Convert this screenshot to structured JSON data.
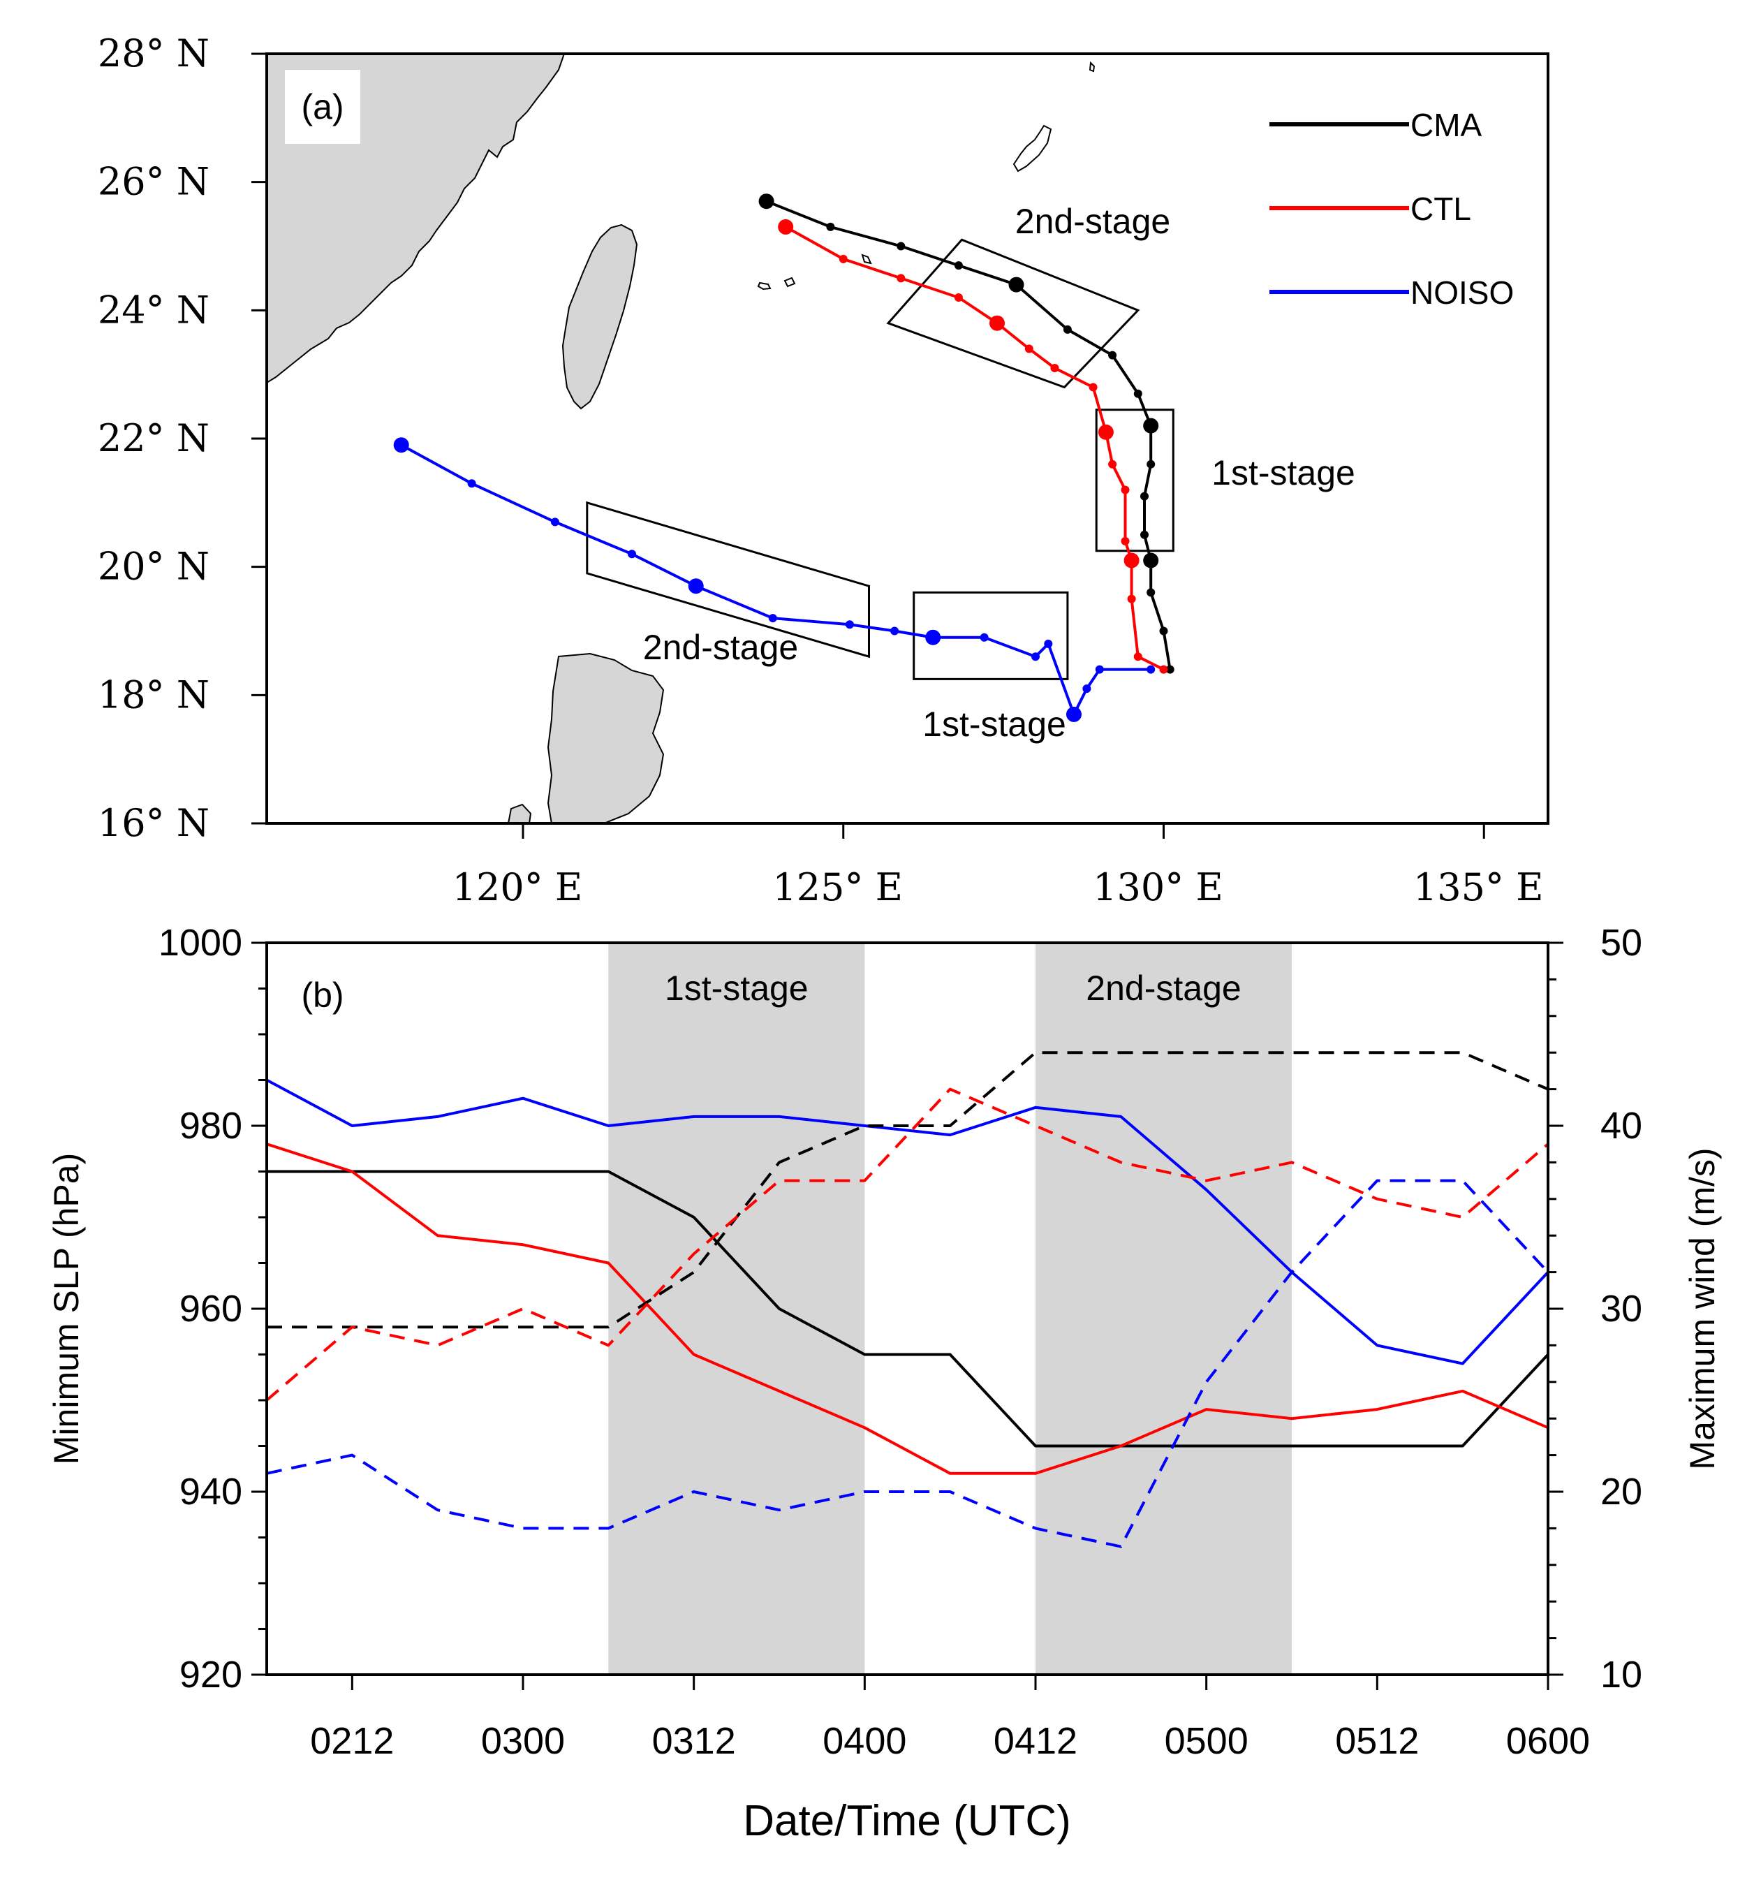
{
  "chart_data": [
    {
      "type": "scatter",
      "panel_label": "(a)",
      "xlim": [
        116,
        136
      ],
      "ylim": [
        16,
        28
      ],
      "x_ticks": [
        120,
        125,
        130,
        135
      ],
      "x_tick_labels": [
        "120° E",
        "125° E",
        "130° E",
        "135° E"
      ],
      "y_ticks": [
        16,
        18,
        20,
        22,
        24,
        26,
        28
      ],
      "y_tick_labels": [
        "16° N",
        "18° N",
        "20° N",
        "22° N",
        "24° N",
        "26° N",
        "28° N"
      ],
      "legend": [
        {
          "name": "CMA",
          "color": "#000000"
        },
        {
          "name": "CTL",
          "color": "#ff0000"
        },
        {
          "name": "NOISO",
          "color": "#0000ff"
        }
      ],
      "series": [
        {
          "name": "CMA",
          "color": "#000000",
          "lon": [
            130.1,
            130.0,
            129.8,
            129.8,
            129.7,
            129.7,
            129.8,
            129.8,
            129.6,
            129.2,
            128.5,
            127.7,
            126.8,
            125.9,
            124.8,
            123.8
          ],
          "lat": [
            18.4,
            19.0,
            19.6,
            20.1,
            20.5,
            21.1,
            21.6,
            22.2,
            22.7,
            23.3,
            23.7,
            24.4,
            24.7,
            25.0,
            25.3,
            25.7
          ],
          "large": [
            0,
            0,
            0,
            1,
            0,
            0,
            0,
            1,
            0,
            0,
            0,
            1,
            0,
            0,
            0,
            1
          ]
        },
        {
          "name": "CTL",
          "color": "#ff0000",
          "lon": [
            130.0,
            129.6,
            129.5,
            129.5,
            129.4,
            129.4,
            129.2,
            129.1,
            128.9,
            128.3,
            127.9,
            127.4,
            126.8,
            125.9,
            125.0,
            124.1
          ],
          "lat": [
            18.4,
            18.6,
            19.5,
            20.1,
            20.4,
            21.2,
            21.6,
            22.1,
            22.8,
            23.1,
            23.4,
            23.8,
            24.2,
            24.5,
            24.8,
            25.3
          ],
          "large": [
            0,
            0,
            0,
            1,
            0,
            0,
            0,
            1,
            0,
            0,
            0,
            1,
            0,
            0,
            0,
            1
          ]
        },
        {
          "name": "NOISO",
          "color": "#0000ff",
          "lon": [
            129.8,
            129.0,
            128.8,
            128.6,
            128.2,
            128.0,
            127.2,
            126.4,
            125.8,
            125.1,
            123.9,
            122.7,
            121.7,
            120.5,
            119.2,
            118.1
          ],
          "lat": [
            18.4,
            18.4,
            18.1,
            17.7,
            18.8,
            18.6,
            18.9,
            18.9,
            19.0,
            19.1,
            19.2,
            19.7,
            20.2,
            20.7,
            21.3,
            21.9
          ],
          "large": [
            0,
            0,
            0,
            1,
            0,
            0,
            0,
            1,
            0,
            0,
            0,
            1,
            0,
            0,
            0,
            1
          ]
        }
      ],
      "stage_boxes": [
        {
          "label": "1st-stage",
          "series": "CTL/CMA",
          "corners": [
            [
              128.95,
              22.45
            ],
            [
              130.15,
              22.45
            ],
            [
              130.15,
              20.25
            ],
            [
              128.95,
              20.25
            ]
          ]
        },
        {
          "label": "2nd-stage",
          "series": "CTL/CMA",
          "corners": [
            [
              126.85,
              25.1
            ],
            [
              129.6,
              24.0
            ],
            [
              128.45,
              22.8
            ],
            [
              125.7,
              23.8
            ]
          ]
        },
        {
          "label": "1st-stage",
          "series": "NOISO",
          "corners": [
            [
              126.1,
              19.6
            ],
            [
              128.5,
              19.6
            ],
            [
              128.5,
              18.25
            ],
            [
              126.1,
              18.25
            ]
          ]
        },
        {
          "label": "2nd-stage",
          "series": "NOISO",
          "corners": [
            [
              121.0,
              21.0
            ],
            [
              125.4,
              19.7
            ],
            [
              125.4,
              18.6
            ],
            [
              121.0,
              19.9
            ]
          ]
        }
      ]
    },
    {
      "type": "line",
      "panel_label": "(b)",
      "title": "",
      "xlabel": "Date/Time (UTC)",
      "ylabel": "Minimum SLP (hPa)",
      "y2label": "Maximum wind (m/s)",
      "xlim": [
        0,
        45
      ],
      "x_ticks": [
        3,
        9,
        15,
        21,
        27,
        33,
        39,
        45
      ],
      "x_tick_labels": [
        "0212",
        "0300",
        "0312",
        "0400",
        "0412",
        "0500",
        "0512",
        "0600"
      ],
      "ylim": [
        920,
        1000
      ],
      "y_ticks": [
        920,
        940,
        960,
        980,
        1000
      ],
      "y2lim": [
        10,
        50
      ],
      "y2_ticks": [
        10,
        20,
        30,
        40,
        50
      ],
      "shaded_periods": [
        {
          "label": "1st-stage",
          "x": [
            12,
            21
          ]
        },
        {
          "label": "2nd-stage",
          "x": [
            27,
            36
          ]
        }
      ],
      "x": [
        0,
        3,
        6,
        9,
        12,
        15,
        18,
        21,
        24,
        27,
        30,
        33,
        36,
        39,
        42,
        45
      ],
      "series": [
        {
          "name": "CMA SLP",
          "color": "#000000",
          "style": "solid",
          "axis": "left",
          "values": [
            975,
            975,
            975,
            975,
            975,
            970,
            960,
            955,
            955,
            945,
            945,
            945,
            945,
            945,
            945,
            955
          ]
        },
        {
          "name": "CTL SLP",
          "color": "#ff0000",
          "style": "solid",
          "axis": "left",
          "values": [
            978,
            975,
            968,
            967,
            965,
            955,
            951,
            947,
            942,
            942,
            945,
            949,
            948,
            949,
            951,
            947
          ]
        },
        {
          "name": "NOISO SLP",
          "color": "#0000ff",
          "style": "solid",
          "axis": "left",
          "values": [
            985,
            980,
            981,
            983,
            980,
            981,
            981,
            980,
            979,
            982,
            981,
            973,
            964,
            956,
            954,
            964
          ]
        },
        {
          "name": "CMA wind",
          "color": "#000000",
          "style": "dashed",
          "axis": "right",
          "values": [
            29,
            29,
            29,
            29,
            29,
            32,
            38,
            40,
            40,
            44,
            44,
            44,
            44,
            44,
            44,
            42
          ]
        },
        {
          "name": "CTL wind",
          "color": "#ff0000",
          "style": "dashed",
          "axis": "right",
          "values": [
            25,
            29,
            28,
            30,
            28,
            33,
            37,
            37,
            42,
            40,
            38,
            37,
            38,
            36,
            35,
            39
          ]
        },
        {
          "name": "NOISO wind",
          "color": "#0000ff",
          "style": "dashed",
          "axis": "right",
          "values": [
            21,
            22,
            19,
            18,
            18,
            20,
            19,
            20,
            20,
            18,
            17,
            26,
            32,
            37,
            37,
            32
          ]
        }
      ]
    }
  ]
}
